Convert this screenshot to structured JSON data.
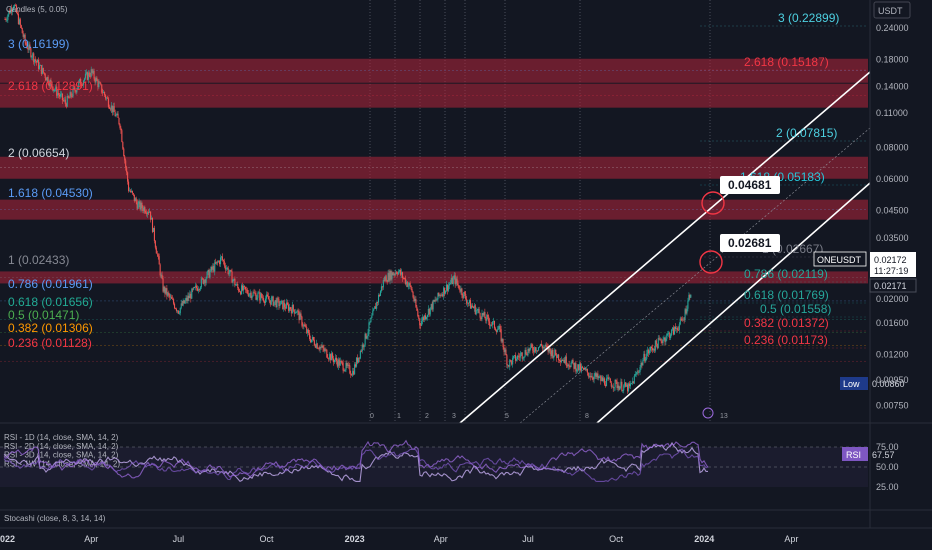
{
  "header": {
    "indicator_title": "Candles (5, 0.05)",
    "currency": "USDT"
  },
  "price_scale": {
    "ticks": [
      "0.24000",
      "0.18000",
      "0.14000",
      "0.11000",
      "0.08000",
      "0.06000",
      "0.04500",
      "0.03500",
      "0.02000",
      "0.01600",
      "0.01200",
      "0.00950",
      "0.00750"
    ],
    "current_symbol": "ONEUSDT",
    "current_price": "0.02172",
    "countdown": "11:27:19",
    "second_price": "0.02171"
  },
  "chart_data": {
    "type": "candlestick",
    "scale": "log",
    "ylim": [
      0.0064,
      0.31
    ],
    "x_labels": [
      "2022",
      "Apr",
      "Jul",
      "Oct",
      "2023",
      "Apr",
      "Jul",
      "Oct",
      "2024",
      "Apr"
    ],
    "price_path": [
      {
        "date": "2022-01-01",
        "price": 0.26
      },
      {
        "date": "2022-01-10",
        "price": 0.3
      },
      {
        "date": "2022-01-22",
        "price": 0.21
      },
      {
        "date": "2022-02-05",
        "price": 0.17
      },
      {
        "date": "2022-02-20",
        "price": 0.14
      },
      {
        "date": "2022-03-05",
        "price": 0.12
      },
      {
        "date": "2022-03-20",
        "price": 0.145
      },
      {
        "date": "2022-04-01",
        "price": 0.16
      },
      {
        "date": "2022-04-15",
        "price": 0.13
      },
      {
        "date": "2022-05-01",
        "price": 0.1
      },
      {
        "date": "2022-05-10",
        "price": 0.055
      },
      {
        "date": "2022-05-20",
        "price": 0.047
      },
      {
        "date": "2022-06-01",
        "price": 0.045
      },
      {
        "date": "2022-06-15",
        "price": 0.022
      },
      {
        "date": "2022-07-01",
        "price": 0.018
      },
      {
        "date": "2022-07-15",
        "price": 0.021
      },
      {
        "date": "2022-08-01",
        "price": 0.025
      },
      {
        "date": "2022-08-15",
        "price": 0.029
      },
      {
        "date": "2022-09-01",
        "price": 0.022
      },
      {
        "date": "2022-10-01",
        "price": 0.02
      },
      {
        "date": "2022-11-01",
        "price": 0.018
      },
      {
        "date": "2022-11-15",
        "price": 0.014
      },
      {
        "date": "2022-12-10",
        "price": 0.0115
      },
      {
        "date": "2022-12-30",
        "price": 0.0102
      },
      {
        "date": "2023-01-15",
        "price": 0.015
      },
      {
        "date": "2023-02-01",
        "price": 0.024
      },
      {
        "date": "2023-02-15",
        "price": 0.026
      },
      {
        "date": "2023-03-01",
        "price": 0.022
      },
      {
        "date": "2023-03-10",
        "price": 0.016
      },
      {
        "date": "2023-04-01",
        "price": 0.021
      },
      {
        "date": "2023-04-15",
        "price": 0.024
      },
      {
        "date": "2023-05-01",
        "price": 0.019
      },
      {
        "date": "2023-06-01",
        "price": 0.015
      },
      {
        "date": "2023-06-10",
        "price": 0.011
      },
      {
        "date": "2023-07-01",
        "price": 0.0125
      },
      {
        "date": "2023-07-15",
        "price": 0.013
      },
      {
        "date": "2023-08-15",
        "price": 0.011
      },
      {
        "date": "2023-09-15",
        "price": 0.0095
      },
      {
        "date": "2023-10-15",
        "price": 0.0088
      },
      {
        "date": "2023-11-01",
        "price": 0.012
      },
      {
        "date": "2023-11-15",
        "price": 0.0135
      },
      {
        "date": "2023-12-01",
        "price": 0.015
      },
      {
        "date": "2023-12-10",
        "price": 0.0165
      },
      {
        "date": "2023-12-18",
        "price": 0.02172
      }
    ],
    "fib_left": [
      {
        "label": "3 (0.16199)",
        "color": "#5b9cf6"
      },
      {
        "label": "2.618 (0.12891)",
        "color": "#f23645"
      },
      {
        "label": "2 (0.06654)",
        "color": "#d1d4dc"
      },
      {
        "label": "1.618 (0.04530)",
        "color": "#5b9cf6"
      },
      {
        "label": "1 (0.02433)",
        "color": "#868993"
      },
      {
        "label": "0.786 (0.01961)",
        "color": "#5b9cf6"
      },
      {
        "label": "0.618 (0.01656)",
        "color": "#22ab94"
      },
      {
        "label": "0.5 (0.01471)",
        "color": "#4caf50"
      },
      {
        "label": "0.382 (0.01306)",
        "color": "#ff9800"
      },
      {
        "label": "0.236 (0.01128)",
        "color": "#f23645"
      }
    ],
    "fib_right": [
      {
        "label": "3 (0.22899)",
        "color": "#4dd0e1"
      },
      {
        "label": "2.618 (0.15187)",
        "color": "#f23645"
      },
      {
        "label": "2 (0.07815)",
        "color": "#4dd0e1"
      },
      {
        "label": "1.618 (0.05183)",
        "color": "#26c6da"
      },
      {
        "label": "1 (0.02667)",
        "color": "#787b86"
      },
      {
        "label": "0.786 (0.02119)",
        "color": "#26a69a"
      },
      {
        "label": "0.618 (0.01769)",
        "color": "#26a69a"
      },
      {
        "label": "0.5 (0.01558)",
        "color": "#26a69a"
      },
      {
        "label": "0.382 (0.01372)",
        "color": "#f23645"
      },
      {
        "label": "0.236 (0.01173)",
        "color": "#f23645"
      }
    ],
    "callouts": [
      "0.04681",
      "0.02681"
    ],
    "low_label": "Low",
    "low_value": "0.00860",
    "wave_labels": [
      "0",
      "1",
      "2",
      "3",
      "5",
      "8",
      "13"
    ]
  },
  "rsi_pane": {
    "legend": [
      "RSI - 1D (14, close, SMA, 14, 2)",
      "RSI - 2D (14, close, SMA, 14, 2)",
      "RSI - 3D (14, close, SMA, 14, 2)",
      "RSI - 1W (14, close, SMA, 14, 2)"
    ],
    "ticks": [
      "75.00",
      "50.00",
      "25.00"
    ],
    "badge_label": "RSI",
    "badge_value": "67.57"
  },
  "stoch_pane": {
    "legend": "Stocashi (close, 8, 3, 14, 14)"
  },
  "colors": {
    "background": "#131722",
    "bull": "#26a69a",
    "bear": "#ef5350",
    "zone": "#b2243a",
    "rsi": "#9c6ade"
  }
}
